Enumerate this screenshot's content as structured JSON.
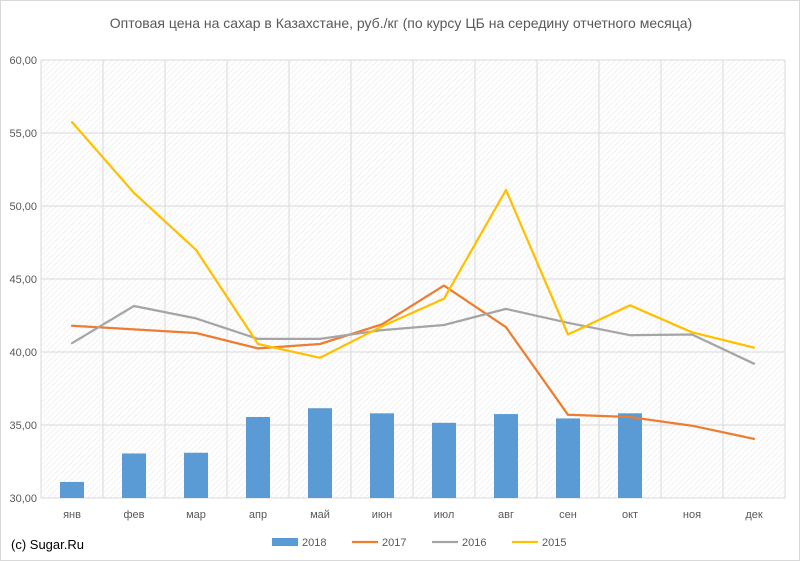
{
  "chart_data": {
    "type": "bar+line",
    "title": "Оптовая цена на сахар в Казахстане, руб./кг (по курсу ЦБ на середину отчетного месяца)",
    "xlabel": "",
    "ylabel": "",
    "categories": [
      "янв",
      "фев",
      "мар",
      "апр",
      "май",
      "июн",
      "июл",
      "авг",
      "сен",
      "окт",
      "ноя",
      "дек"
    ],
    "ylim": [
      30,
      60
    ],
    "yticks": [
      30,
      35,
      40,
      45,
      50,
      55,
      60
    ],
    "ytick_labels": [
      "30,00",
      "35,00",
      "40,00",
      "45,00",
      "50,00",
      "55,00",
      "60,00"
    ],
    "grid": true,
    "legend_position": "bottom",
    "series": [
      {
        "name": "2018",
        "kind": "bar",
        "color": "#5b9bd5",
        "values": [
          31.1,
          33.05,
          33.1,
          35.55,
          36.15,
          35.8,
          35.15,
          35.75,
          35.45,
          35.8,
          null,
          null
        ]
      },
      {
        "name": "2017",
        "kind": "line",
        "color": "#ed7d31",
        "values": [
          41.8,
          41.55,
          41.3,
          40.25,
          40.55,
          41.9,
          44.55,
          41.7,
          35.7,
          35.55,
          34.95,
          34.05
        ]
      },
      {
        "name": "2016",
        "kind": "line",
        "color": "#a5a5a5",
        "values": [
          40.6,
          43.15,
          42.3,
          40.9,
          40.9,
          41.5,
          41.85,
          42.95,
          42.0,
          41.15,
          41.2,
          39.2
        ]
      },
      {
        "name": "2015",
        "kind": "line",
        "color": "#ffc000",
        "values": [
          55.75,
          50.9,
          47.0,
          40.55,
          39.6,
          41.75,
          43.65,
          51.1,
          41.2,
          43.2,
          41.35,
          40.3
        ]
      }
    ]
  },
  "credit": "(c) Sugar.Ru"
}
